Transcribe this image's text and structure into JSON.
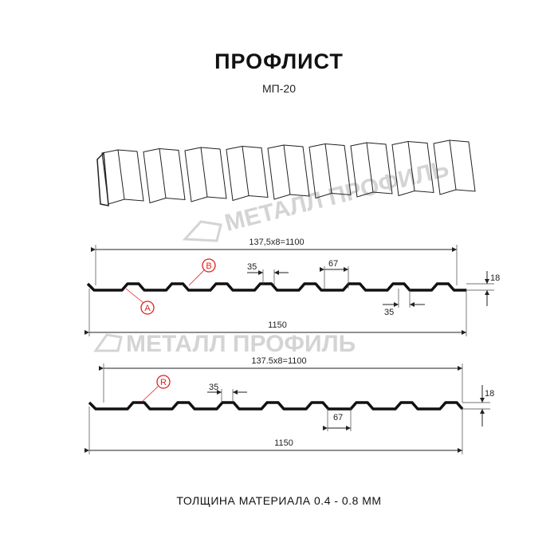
{
  "title": "ПРОФЛИСТ",
  "subtitle": "МП-20",
  "footer": "ТОЛЩИНА МАТЕРИАЛА 0.4 - 0.8 ММ",
  "watermark": "МЕТАЛЛ ПРОФИЛЬ",
  "profile_a": {
    "top_dim": "137,5x8=1100",
    "bottom_dim": "1150",
    "rib_top": "35",
    "rib_bottom": "35",
    "pitch": "67",
    "height": "18",
    "label_a": "A",
    "label_b": "B"
  },
  "profile_b": {
    "top_dim": "137.5x8=1100",
    "bottom_dim": "1150",
    "rib_top": "35",
    "pitch": "67",
    "height": "18",
    "label_r": "R"
  },
  "colors": {
    "line": "#111111",
    "marker": "#e02020",
    "watermark": "#d4d4d4"
  }
}
